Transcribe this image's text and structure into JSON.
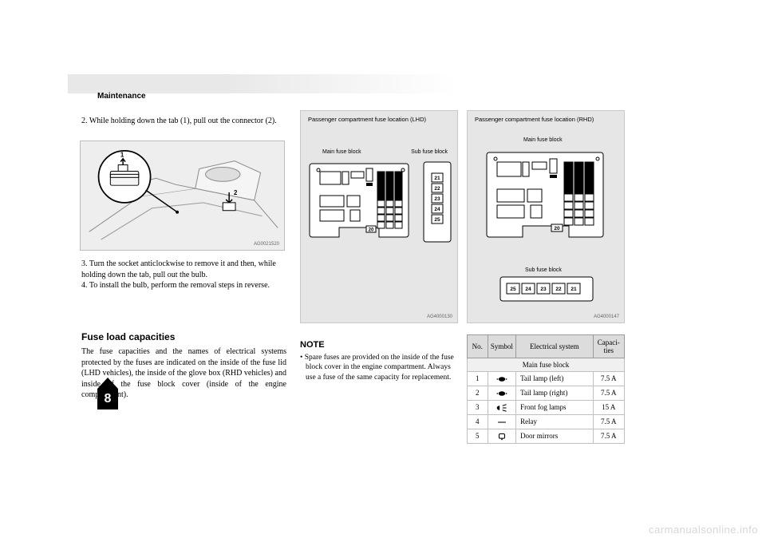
{
  "header": {
    "title": "Maintenance"
  },
  "col1": {
    "pre": "2. While holding down the tab (1), pull out the connector (2).",
    "post": "3. Turn the socket anticlockwise to remove it and then, while holding down the tab, pull out the bulb.\n4. To install the bulb, perform the removal steps in reverse.",
    "cap_heading": "Fuse load capacities",
    "cap_body": "The fuse capacities and the names of electrical systems protected by the fuses are indicated on the inside of the fuse lid (LHD vehicles), the inside of the glove box (RHD vehicles) and inside of the fuse block cover (inside of the engine compartment)."
  },
  "engine_fig": {
    "id": "AG0021520"
  },
  "note": {
    "title": "NOTE",
    "body": "• Spare fuses are provided on the inside of the fuse block cover in the engine compartment. Always use a fuse of the same capacity for replacement."
  },
  "lhd": {
    "title": "Passenger compartment fuse location (LHD)",
    "main_label": "Main fuse block",
    "sub_label": "Sub fuse block",
    "id": "AG4000130",
    "sub_nums": [
      "21",
      "22",
      "23",
      "24",
      "25"
    ],
    "n20": "20"
  },
  "rhd": {
    "title": "Passenger compartment fuse location (RHD)",
    "main_label": "Main fuse block",
    "sub_label": "Sub fuse block",
    "id": "AG4000147",
    "sub_nums_rev": [
      "25",
      "24",
      "23",
      "22",
      "21"
    ],
    "n20": "20"
  },
  "table": {
    "headers": [
      "No.",
      "Symbol",
      "Electrical system",
      "Capaci-\nties"
    ],
    "group_header": "Main fuse block",
    "col_widths_pct": [
      13,
      18,
      49,
      20
    ],
    "rows": [
      {
        "no": "1",
        "icon": "tail",
        "sys": "Tail lamp (left)",
        "cap": "7.5 A"
      },
      {
        "no": "2",
        "icon": "tail",
        "sys": "Tail lamp (right)",
        "cap": "7.5 A"
      },
      {
        "no": "3",
        "icon": "fog",
        "sys": "Front fog lamps",
        "cap": "15 A"
      },
      {
        "no": "4",
        "icon": "blank",
        "sys": "Relay",
        "cap": "7.5 A"
      },
      {
        "no": "5",
        "icon": "mirror",
        "sys": "Door mirrors",
        "cap": "7.5 A"
      }
    ]
  },
  "colors": {
    "gray_bg": "#e6e6e6",
    "hdr_gray": "#dcdcdc",
    "border": "#9a9a9a",
    "lt_border": "#c0c0c0",
    "fade_start": "#e8e8e8"
  },
  "chapter": "8",
  "watermark": "carmanualsonline.info"
}
